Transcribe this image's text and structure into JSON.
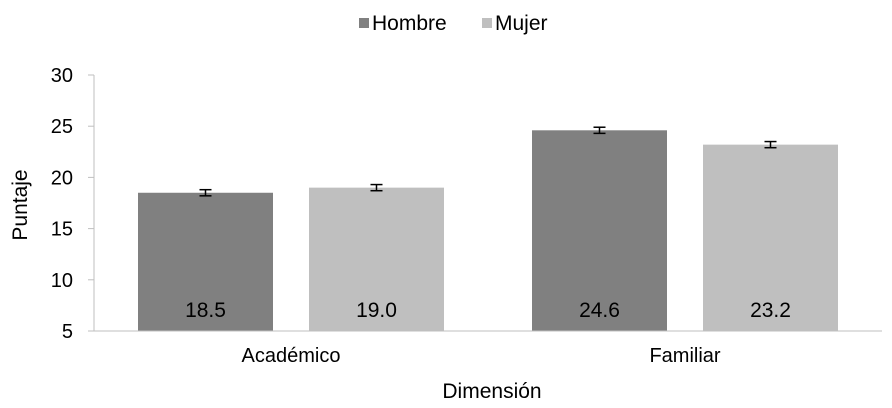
{
  "chart_data": {
    "type": "bar",
    "title": "",
    "xlabel": "Dimensión",
    "ylabel": "Puntaje",
    "categories": [
      "Académico",
      "Familiar"
    ],
    "series": [
      {
        "name": "Hombre",
        "color": "#808080",
        "values": [
          18.5,
          24.6
        ],
        "labels": [
          "18.5",
          "24.6"
        ],
        "error": [
          0.3,
          0.3
        ]
      },
      {
        "name": "Mujer",
        "color": "#bfbfbf",
        "values": [
          19.0,
          23.2
        ],
        "labels": [
          "19.0",
          "23.2"
        ],
        "error": [
          0.3,
          0.3
        ]
      }
    ],
    "ylim": [
      5,
      30
    ],
    "yticks": [
      5,
      10,
      15,
      20,
      25,
      30
    ],
    "grid": false,
    "legend_position": "top-center"
  }
}
